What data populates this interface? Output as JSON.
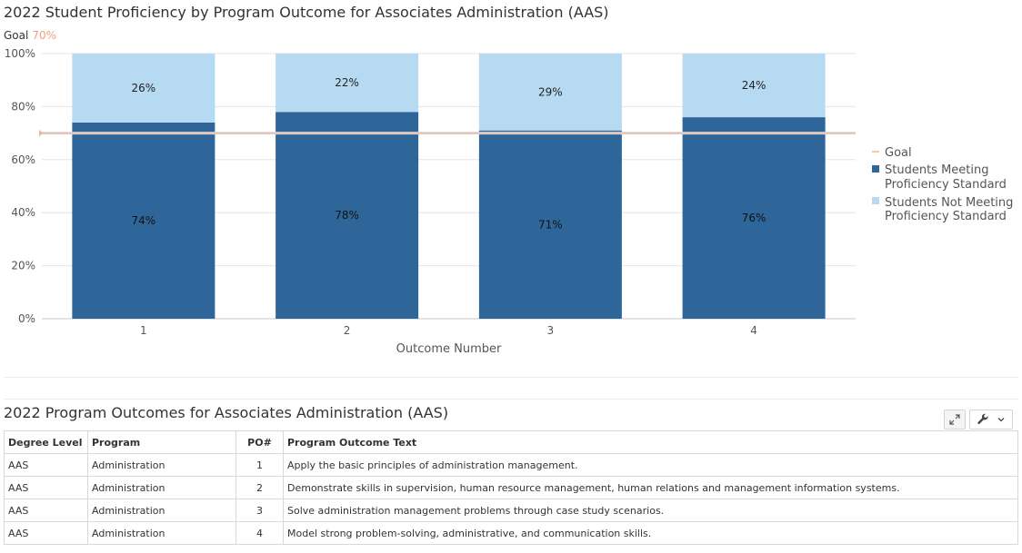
{
  "chart_data": {
    "type": "bar",
    "stacked": true,
    "title": "2022 Student Proficiency by Program Outcome for Associates Administration (AAS)",
    "goal_label": "Goal",
    "goal_value_label": "70%",
    "goal": 70,
    "xlabel": "Outcome Number",
    "ylabel": "",
    "ylim": [
      0,
      100
    ],
    "yticks": [
      "0%",
      "20%",
      "40%",
      "60%",
      "80%",
      "100%"
    ],
    "ytick_values": [
      0,
      20,
      40,
      60,
      80,
      100
    ],
    "categories": [
      "1",
      "2",
      "3",
      "4"
    ],
    "series": [
      {
        "name": "Students Meeting Proficiency Standard",
        "values": [
          74,
          78,
          71,
          76
        ],
        "labels": [
          "74%",
          "78%",
          "71%",
          "76%"
        ],
        "color": "#2f6699"
      },
      {
        "name": "Students Not Meeting Proficiency Standard",
        "values": [
          26,
          22,
          29,
          24
        ],
        "labels": [
          "26%",
          "22%",
          "29%",
          "24%"
        ],
        "color": "#b7daf3"
      }
    ],
    "goal_color": "#f5b49a",
    "grid": true,
    "legend_position": "right",
    "legend": {
      "goal": "Goal",
      "meeting_line1": "Students Meeting",
      "meeting_line2": "Proficiency Standard",
      "not_meeting_line1": "Students Not Meeting",
      "not_meeting_line2": "Proficiency Standard"
    }
  },
  "table": {
    "title": "2022 Program Outcomes for Associates Administration (AAS)",
    "columns": [
      "Degree Level",
      "Program",
      "PO#",
      "Program Outcome Text"
    ],
    "rows": [
      [
        "AAS",
        "Administration",
        "1",
        "Apply the basic principles of administration management."
      ],
      [
        "AAS",
        "Administration",
        "2",
        "Demonstrate skills in supervision, human resource management, human relations and management information systems."
      ],
      [
        "AAS",
        "Administration",
        "3",
        "Solve administration management problems through case study scenarios."
      ],
      [
        "AAS",
        "Administration",
        "4",
        "Model strong problem-solving, administrative, and communication skills."
      ]
    ],
    "tools": {
      "expand_icon": "expand-icon",
      "wrench_icon": "wrench-icon",
      "chevron_icon": "chevron-down-icon"
    }
  }
}
